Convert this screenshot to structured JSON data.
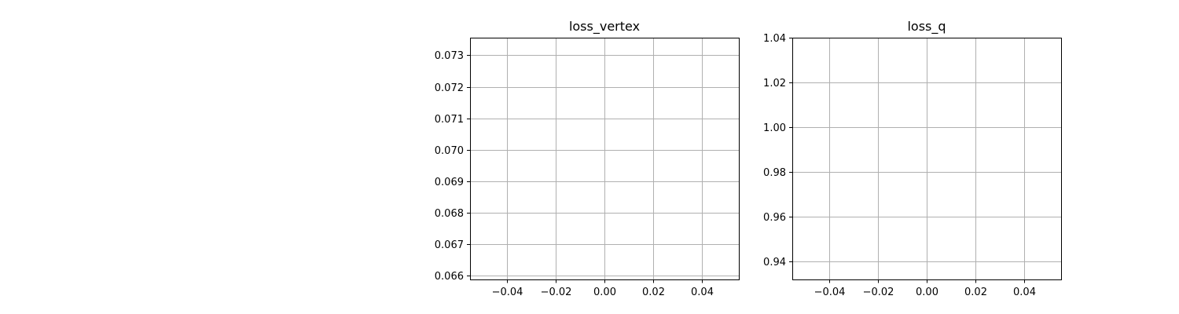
{
  "chart_data": [
    {
      "type": "line",
      "title": "loss_vertex",
      "xlabel": "",
      "ylabel": "",
      "xlim": [
        -0.055,
        0.055
      ],
      "ylim": [
        0.06588,
        0.07356
      ],
      "xticks": [
        -0.04,
        -0.02,
        0.0,
        0.02,
        0.04
      ],
      "xtick_labels": [
        "−0.04",
        "−0.02",
        "0.00",
        "0.02",
        "0.04"
      ],
      "yticks": [
        0.066,
        0.067,
        0.068,
        0.069,
        0.07,
        0.071,
        0.072,
        0.073
      ],
      "ytick_labels": [
        "0.066",
        "0.067",
        "0.068",
        "0.069",
        "0.070",
        "0.071",
        "0.072",
        "0.073"
      ],
      "grid": true,
      "series": [
        {
          "x": [],
          "y": []
        }
      ]
    },
    {
      "type": "line",
      "title": "loss_q",
      "xlabel": "",
      "ylabel": "",
      "xlim": [
        -0.055,
        0.055
      ],
      "ylim": [
        0.932,
        1.04
      ],
      "xticks": [
        -0.04,
        -0.02,
        0.0,
        0.02,
        0.04
      ],
      "xtick_labels": [
        "−0.04",
        "−0.02",
        "0.00",
        "0.02",
        "0.04"
      ],
      "yticks": [
        0.94,
        0.96,
        0.98,
        1.0,
        1.02,
        1.04
      ],
      "ytick_labels": [
        "0.94",
        "0.96",
        "0.98",
        "1.00",
        "1.02",
        "1.04"
      ],
      "grid": true,
      "series": [
        {
          "x": [],
          "y": []
        }
      ]
    }
  ],
  "colors": {
    "grid": "#b0b0b0",
    "frame": "#000000",
    "text": "#000000",
    "background": "#ffffff"
  }
}
